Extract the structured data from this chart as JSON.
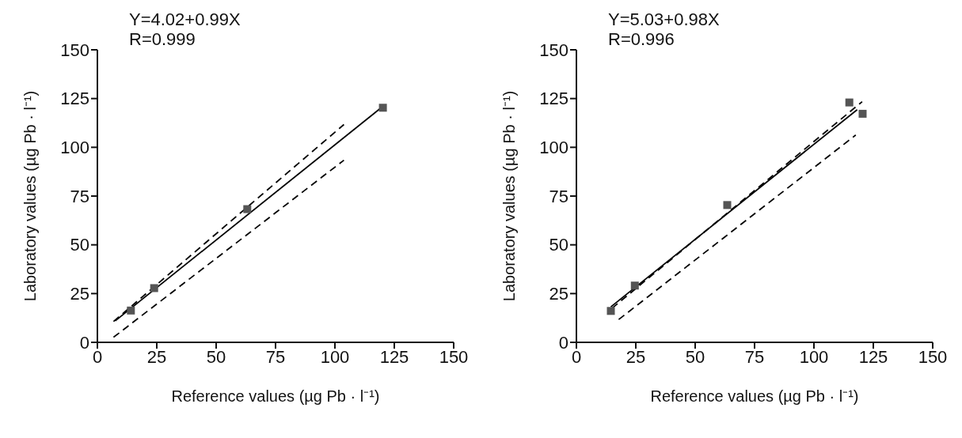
{
  "chart_data": [
    {
      "type": "scatter",
      "xlabel": "Reference values (µg Pb · l⁻¹)",
      "ylabel": "Laboratory values (µg Pb · l⁻¹)",
      "annotations": [
        "Y=4.02+0.99X",
        "R=0.999"
      ],
      "xlim": [
        0,
        150
      ],
      "ylim": [
        0,
        150
      ],
      "xticks": [
        0,
        25,
        50,
        75,
        100,
        125,
        150
      ],
      "yticks": [
        0,
        25,
        50,
        75,
        100,
        125,
        150
      ],
      "series": [
        {
          "x": [
            14.1,
            23.9,
            63.1,
            120.2
          ],
          "values": [
            16.3,
            27.8,
            68.3,
            120.3
          ],
          "color": "#555555",
          "marker": "square"
        },
        {
          "type": "line",
          "x": [
            7.5,
            120
          ],
          "values": [
            11,
            120.8
          ],
          "color": "#000000",
          "line_style": "solid",
          "marker": "none"
        },
        {
          "type": "line",
          "x": [
            6.8,
            103.8
          ],
          "values": [
            10.7,
            111.7
          ],
          "color": "#000000",
          "line_style": "dashed",
          "marker": "none"
        },
        {
          "type": "line",
          "x": [
            6.8,
            103.8
          ],
          "values": [
            2.6,
            93.4
          ],
          "color": "#000000",
          "line_style": "dashed",
          "marker": "none"
        }
      ]
    },
    {
      "type": "scatter",
      "xlabel": "Reference values (µg Pb · l⁻¹)",
      "ylabel": "Laboratory values (µg Pb · l⁻¹)",
      "annotations": [
        "Y=5.03+0.98X",
        "R=0.996"
      ],
      "xlim": [
        0,
        150
      ],
      "ylim": [
        0,
        150
      ],
      "xticks": [
        0,
        25,
        50,
        75,
        100,
        125,
        150
      ],
      "yticks": [
        0,
        25,
        50,
        75,
        100,
        125,
        150
      ],
      "series": [
        {
          "x": [
            14.5,
            24.6,
            63.5,
            114.9,
            120.5
          ],
          "values": [
            16.1,
            29.1,
            70.4,
            123,
            117.2
          ],
          "color": "#555555",
          "marker": "square"
        },
        {
          "type": "line",
          "x": [
            14.5,
            118.2
          ],
          "values": [
            18.2,
            119.3
          ],
          "color": "#000000",
          "line_style": "solid",
          "marker": "none"
        },
        {
          "type": "line",
          "x": [
            15,
            120.3
          ],
          "values": [
            17.5,
            123.4
          ],
          "color": "#000000",
          "line_style": "dashed",
          "marker": "none"
        },
        {
          "type": "line",
          "x": [
            17.8,
            117.6
          ],
          "values": [
            11.7,
            106.3
          ],
          "color": "#000000",
          "line_style": "dashed",
          "marker": "none"
        }
      ]
    }
  ]
}
